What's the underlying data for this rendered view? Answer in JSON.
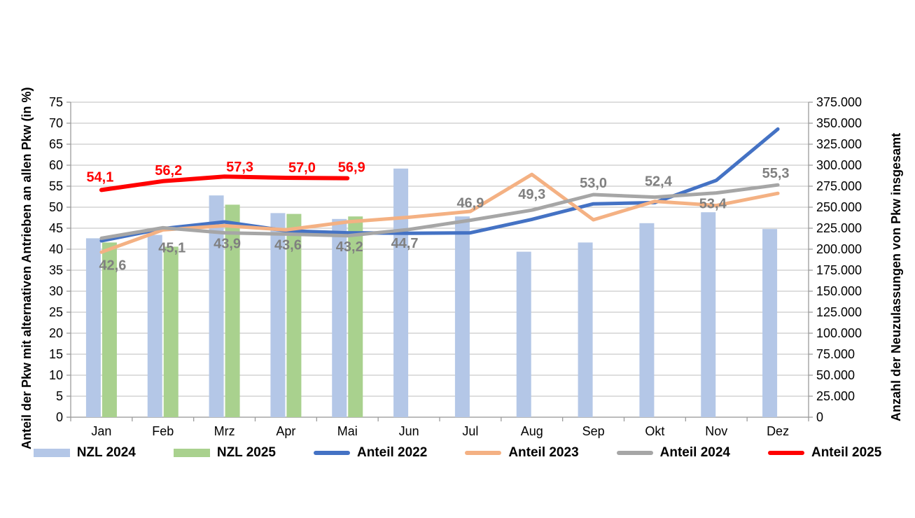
{
  "chart_data": {
    "type": "combo-bar-line",
    "title": "",
    "categories": [
      "Jan",
      "Feb",
      "Mrz",
      "Apr",
      "Mai",
      "Jun",
      "Jul",
      "Aug",
      "Sep",
      "Okt",
      "Nov",
      "Dez"
    ],
    "left_axis": {
      "label": "Anteil der Pkw mit alternativen Antrieben an allen Pkw (in %)",
      "min": 0,
      "max": 75,
      "step": 5,
      "ticks": [
        "75",
        "70",
        "65",
        "60",
        "55",
        "50",
        "45",
        "40",
        "35",
        "30",
        "25",
        "20",
        "15",
        "10",
        "5",
        "0"
      ]
    },
    "right_axis": {
      "label": "Anzahl der Neuzulassungen von Pkw insgesamt",
      "min": 0,
      "max": 375000,
      "step": 25000,
      "ticks": [
        "375.000",
        "350.000",
        "325.000",
        "300.000",
        "275.000",
        "250.000",
        "225.000",
        "200.000",
        "175.000",
        "150.000",
        "125.000",
        "100.000",
        "75.000",
        "50.000",
        "25.000",
        "0"
      ]
    },
    "grid": true,
    "legend_position": "bottom",
    "series": [
      {
        "name": "NZL 2024",
        "type": "bar",
        "axis": "right",
        "color": "#b4c7e7",
        "values": [
          213000,
          217000,
          264000,
          243000,
          236000,
          296000,
          239000,
          197000,
          208000,
          231000,
          244000,
          224000
        ]
      },
      {
        "name": "NZL 2025",
        "type": "bar",
        "axis": "right",
        "color": "#a9d18e",
        "values": [
          208000,
          203000,
          253000,
          242000,
          239000,
          null,
          null,
          null,
          null,
          null,
          null,
          null
        ]
      },
      {
        "name": "Anteil 2022",
        "type": "line",
        "axis": "left",
        "color": "#4472c4",
        "values": [
          42.0,
          44.9,
          46.5,
          44.4,
          43.9,
          43.8,
          43.9,
          47.1,
          50.8,
          51.1,
          56.4,
          68.6
        ]
      },
      {
        "name": "Anteil 2023",
        "type": "line",
        "axis": "left",
        "color": "#f4b183",
        "values": [
          39.3,
          44.6,
          45.6,
          44.6,
          46.5,
          47.6,
          49.0,
          57.8,
          47.0,
          51.4,
          50.4,
          53.3
        ]
      },
      {
        "name": "Anteil 2024",
        "type": "line",
        "axis": "left",
        "color": "#a6a6a6",
        "label_color": "#808080",
        "values": [
          42.6,
          45.1,
          43.9,
          43.6,
          43.2,
          44.7,
          46.9,
          49.3,
          53.0,
          52.4,
          53.4,
          55.3
        ],
        "labels": [
          "42,6",
          "45,1",
          "43,9",
          "43,6",
          "43,2",
          "44,7",
          "46,9",
          "49,3",
          "53,0",
          "52,4",
          "53,4",
          "55,3"
        ]
      },
      {
        "name": "Anteil 2025",
        "type": "line",
        "axis": "left",
        "color": "#ff0000",
        "label_color": "#ff0000",
        "values": [
          54.1,
          56.2,
          57.3,
          57.0,
          56.9,
          null,
          null,
          null,
          null,
          null,
          null,
          null
        ],
        "labels": [
          "54,1",
          "56,2",
          "57,3",
          "57,0",
          "56,9"
        ]
      }
    ]
  }
}
